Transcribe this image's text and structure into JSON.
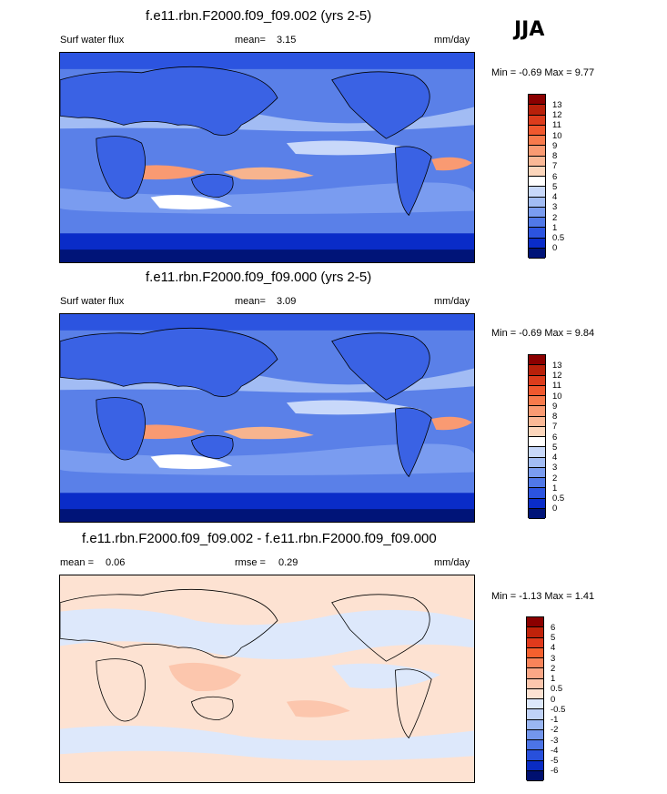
{
  "season": "JJA",
  "colors": {
    "wet_map_ocean": "#5a80e8",
    "diff_map_ocean": "#f9dcc8"
  },
  "panels": [
    {
      "title": "f.e11.rbn.F2000.f09_f09.002 (yrs 2-5)",
      "left_label": "Surf water flux",
      "mean_label": "mean=",
      "mean_value": "3.15",
      "units": "mm/day",
      "minmax": "Min =  -0.69 Max =   9.77"
    },
    {
      "title": "f.e11.rbn.F2000.f09_f09.000 (yrs 2-5)",
      "left_label": "Surf water flux",
      "mean_label": "mean=",
      "mean_value": "3.09",
      "units": "mm/day",
      "minmax": "Min =  -0.69 Max =   9.84"
    },
    {
      "title": "f.e11.rbn.F2000.f09_f09.002 - f.e11.rbn.F2000.f09_f09.000",
      "left_label": "mean =",
      "left_value": "0.06",
      "mid_label": "rmse =",
      "mid_value": "0.29",
      "units": "mm/day",
      "minmax": "Min =  -1.13 Max =   1.41"
    }
  ],
  "colorbar_abs": {
    "labels": [
      "13",
      "12",
      "11",
      "10",
      "9",
      "8",
      "7",
      "6",
      "5",
      "4",
      "3",
      "2",
      "1",
      "0.5",
      "0"
    ],
    "colors": [
      "#8b0000",
      "#b8200a",
      "#dc3c1c",
      "#f0582e",
      "#f77a4c",
      "#f99a72",
      "#fab896",
      "#fcd6bc",
      "#ffffff",
      "#c8d8fa",
      "#a2bcf4",
      "#7a9cf0",
      "#5078e8",
      "#2c54e0",
      "#0a2cc8",
      "#001478"
    ]
  },
  "colorbar_diff": {
    "labels": [
      "6",
      "5",
      "4",
      "3",
      "2",
      "1",
      "0.5",
      "0",
      "-0.5",
      "-1",
      "-2",
      "-3",
      "-4",
      "-5",
      "-6"
    ],
    "colors": [
      "#8b0000",
      "#c0220a",
      "#e03a1c",
      "#f5602e",
      "#f9845a",
      "#fba786",
      "#fcc6ad",
      "#fde2d2",
      "#dde8fb",
      "#c0d2f7",
      "#9ab6f2",
      "#7396ec",
      "#4c74e6",
      "#2850dc",
      "#0a2cc4",
      "#001070"
    ]
  }
}
